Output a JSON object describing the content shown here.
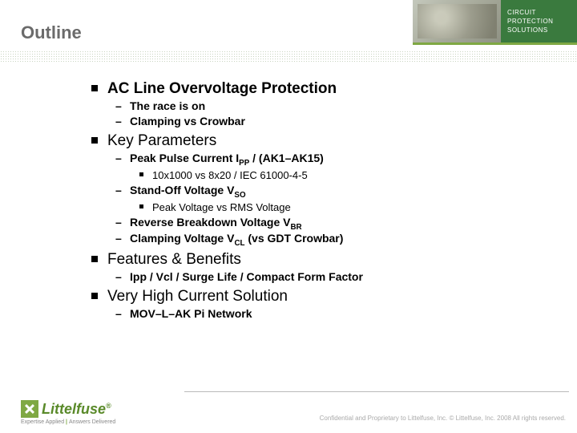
{
  "header": {
    "title": "Outline",
    "green_block": {
      "line1": "CIRCUIT",
      "line2": "PROTECTION",
      "line3": "SOLUTIONS"
    }
  },
  "outline": [
    {
      "text": "AC Line Overvoltage Protection",
      "bold": true,
      "children": [
        {
          "text": "The race is on",
          "bold": true
        },
        {
          "text": "Clamping vs Crowbar",
          "bold": true
        }
      ]
    },
    {
      "text": "Key Parameters",
      "bold": false,
      "children": [
        {
          "text": "Peak Pulse Current I",
          "sub": "PP",
          "after": " / (AK1–AK15)",
          "bold": true,
          "children": [
            {
              "text": "10x1000 vs 8x20 / IEC 61000-4-5"
            }
          ]
        },
        {
          "text": "Stand-Off Voltage V",
          "sub": "SO",
          "bold": true,
          "children": [
            {
              "text": "Peak Voltage vs RMS Voltage"
            }
          ]
        },
        {
          "text": "Reverse Breakdown Voltage V",
          "sub": "BR",
          "bold": true
        },
        {
          "text": "Clamping Voltage V",
          "sub": "CL",
          "after": " (vs GDT Crowbar)",
          "bold": true
        }
      ]
    },
    {
      "text": "Features & Benefits",
      "bold": false,
      "children": [
        {
          "text": "Ipp / Vcl / Surge Life / Compact Form Factor",
          "bold": true
        }
      ]
    },
    {
      "text": "Very High Current Solution",
      "bold": false,
      "children": [
        {
          "text": "MOV–L–AK Pi Network",
          "bold": true
        }
      ]
    }
  ],
  "footer": {
    "logo_text": "Littelfuse",
    "tagline_left": "Expertise Applied",
    "tagline_right": "Answers Delivered",
    "confidential": "Confidential and Proprietary to Littelfuse, Inc. © Littelfuse, Inc. 2008 All rights reserved."
  },
  "colors": {
    "title": "#6b6b6b",
    "green_block": "#3a7a3e",
    "accent_green": "#7fa843",
    "logo_green": "#5a8a2a",
    "footer_text": "#aaaaaa"
  }
}
